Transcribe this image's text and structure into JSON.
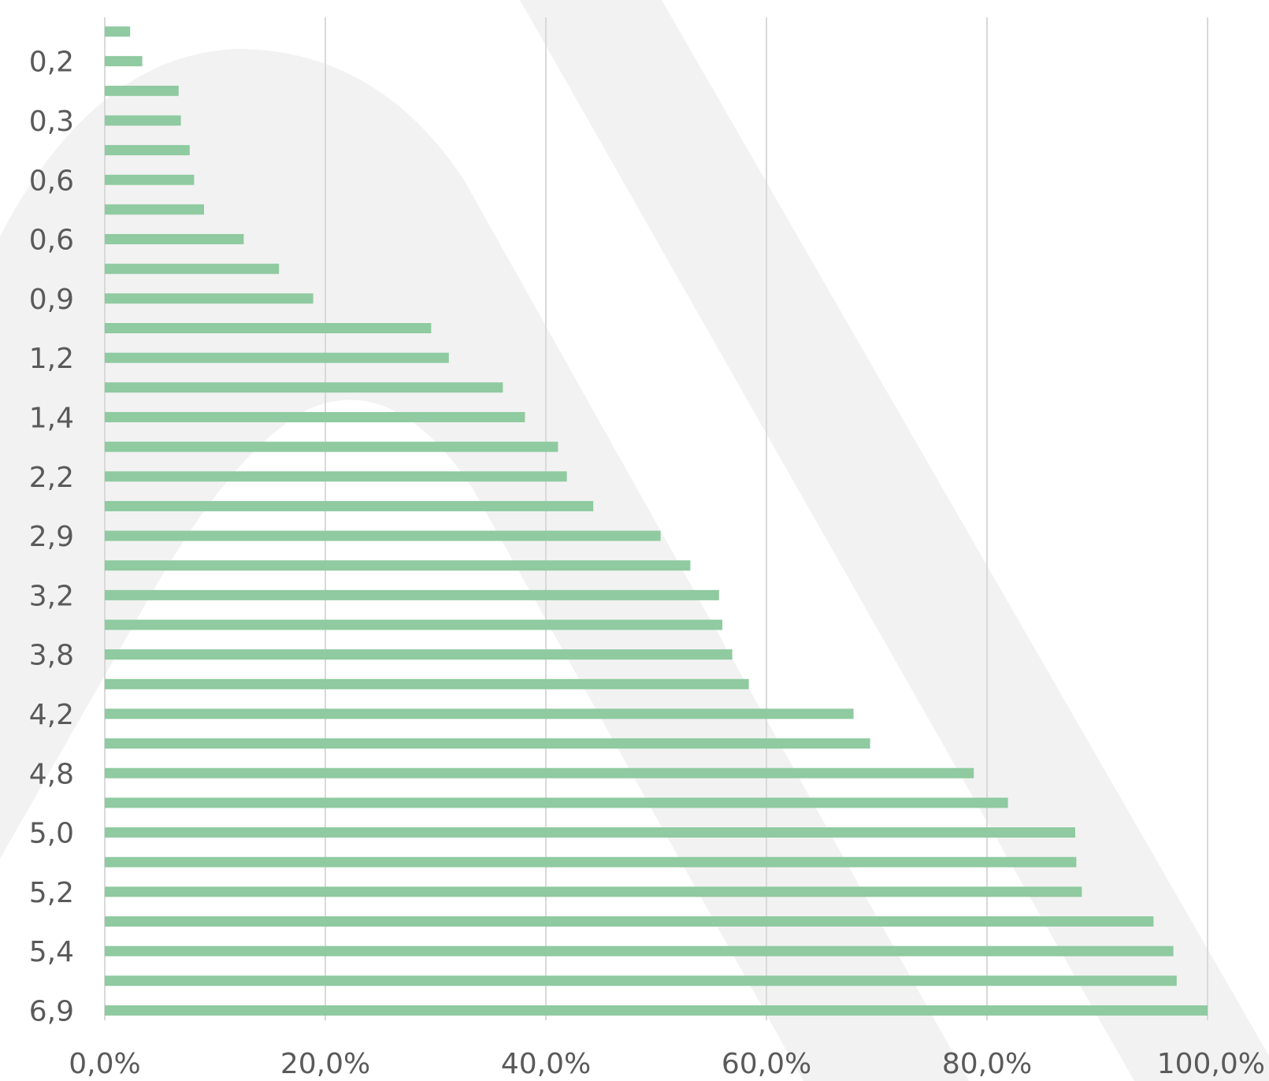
{
  "chart_data": {
    "type": "bar",
    "orientation": "horizontal",
    "y_tick_labels": [
      "0,2",
      "0,3",
      "0,6",
      "0,6",
      "0,9",
      "1,2",
      "1,4",
      "2,2",
      "2,9",
      "3,2",
      "3,8",
      "4,2",
      "4,8",
      "5,0",
      "5,2",
      "5,4",
      "6,9"
    ],
    "values": [
      2.3,
      3.4,
      6.7,
      6.9,
      7.7,
      8.1,
      9.0,
      12.6,
      15.8,
      18.9,
      29.6,
      31.2,
      36.1,
      38.1,
      41.1,
      41.9,
      44.3,
      50.4,
      53.1,
      55.7,
      56.0,
      56.9,
      58.4,
      67.9,
      69.4,
      78.8,
      81.9,
      88.0,
      88.1,
      88.6,
      95.1,
      96.9,
      97.2,
      100.0
    ],
    "x_tick_labels": [
      "0,0%",
      "20,0%",
      "40,0%",
      "60,0%",
      "80,0%",
      "100,0%"
    ],
    "xlim": [
      0,
      100
    ],
    "grid": true,
    "bar_color": "#8fcaa0",
    "grid_color": "#d9d9d9",
    "text_color": "#5a5a5a",
    "watermark_color": "#f2f2f2"
  }
}
